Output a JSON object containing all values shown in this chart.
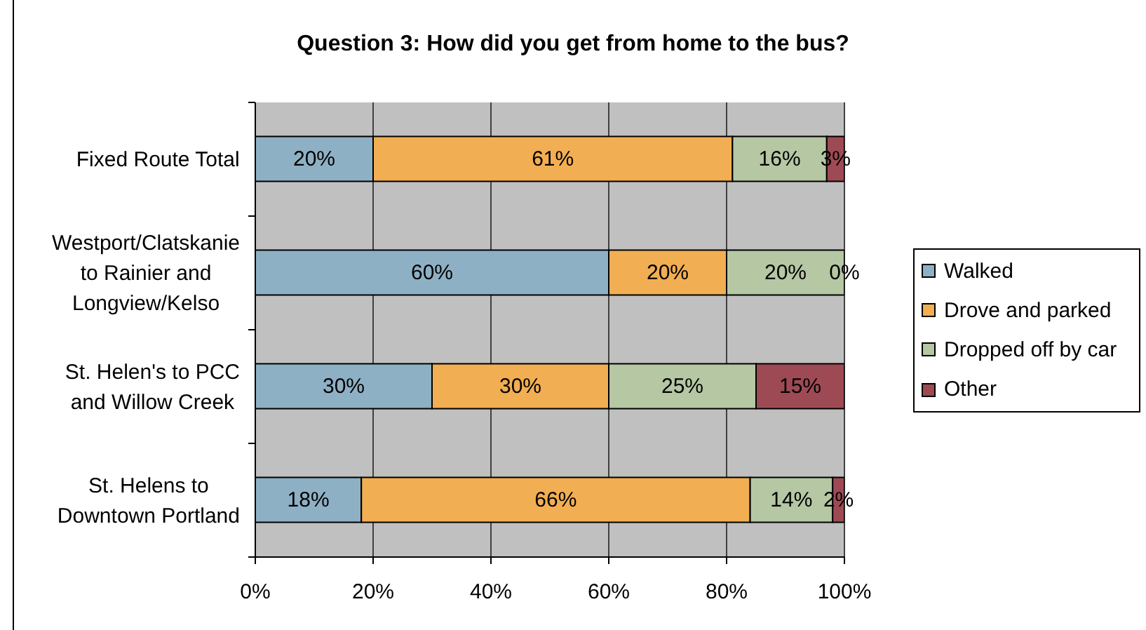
{
  "chart_data": {
    "type": "bar",
    "title": "Question 3: How did you get from home to the bus?",
    "orientation": "horizontal",
    "stacked": true,
    "categories": [
      "Fixed Route Total",
      "Westport/Clatskanie to Rainier and Longview/Kelso",
      "St. Helen's to PCC and Willow Creek",
      "St. Helens to Downtown Portland"
    ],
    "series": [
      {
        "name": "Walked",
        "color": "#8eb0c4",
        "values": [
          20,
          60,
          30,
          18
        ],
        "value_labels": [
          "20%",
          "60%",
          "30%",
          "18%"
        ]
      },
      {
        "name": "Drove and parked",
        "color": "#f2ae52",
        "values": [
          61,
          20,
          30,
          66
        ],
        "value_labels": [
          "61%",
          "20%",
          "30%",
          "66%"
        ]
      },
      {
        "name": "Dropped off by car",
        "color": "#b5c7a3",
        "values": [
          16,
          20,
          25,
          14
        ],
        "value_labels": [
          "16%",
          "20%",
          "25%",
          "14%"
        ]
      },
      {
        "name": "Other",
        "color": "#9e4a54",
        "values": [
          3,
          0,
          15,
          2
        ],
        "value_labels": [
          "3%",
          "0%",
          "15%",
          "2%"
        ]
      }
    ],
    "xlim": [
      0,
      100
    ],
    "xticks": [
      {
        "value": 0,
        "label": "0%"
      },
      {
        "value": 20,
        "label": "20%"
      },
      {
        "value": 40,
        "label": "40%"
      },
      {
        "value": 60,
        "label": "60%"
      },
      {
        "value": 80,
        "label": "80%"
      },
      {
        "value": 100,
        "label": "100%"
      }
    ],
    "grid": "x",
    "legend": "right"
  }
}
